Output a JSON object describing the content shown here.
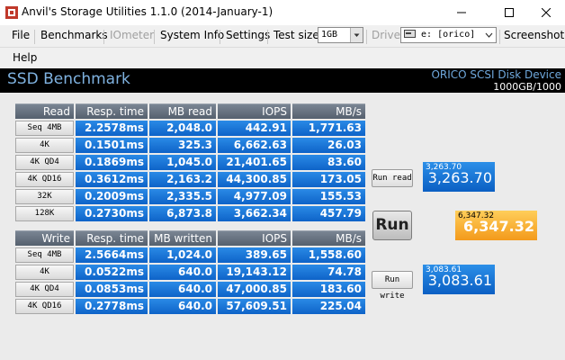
{
  "window": {
    "title": "Anvil's Storage Utilities 1.1.0 (2014-January-1)"
  },
  "menu": {
    "file": "File",
    "benchmarks": "Benchmarks",
    "iometer": "IOmeter",
    "system_info": "System Info",
    "settings": "Settings",
    "test_size_label": "Test size",
    "test_size_value": "1GB",
    "drive_label": "Drive",
    "drive_value": "e: [orico]",
    "screenshot": "Screenshot",
    "help": "Help"
  },
  "header": {
    "title": "SSD Benchmark",
    "disk_name": "ORICO  SCSI Disk Device",
    "disk_size": "1000GB/1000"
  },
  "read_table": {
    "headers": [
      "Read",
      "Resp. time",
      "MB read",
      "IOPS",
      "MB/s"
    ],
    "rows": [
      {
        "label": "Seq 4MB",
        "resp": "2.2578ms",
        "mb": "2,048.0",
        "iops": "442.91",
        "mbs": "1,771.63"
      },
      {
        "label": "4K",
        "resp": "0.1501ms",
        "mb": "325.3",
        "iops": "6,662.63",
        "mbs": "26.03"
      },
      {
        "label": "4K QD4",
        "resp": "0.1869ms",
        "mb": "1,045.0",
        "iops": "21,401.65",
        "mbs": "83.60"
      },
      {
        "label": "4K QD16",
        "resp": "0.3612ms",
        "mb": "2,163.2",
        "iops": "44,300.85",
        "mbs": "173.05"
      },
      {
        "label": "32K",
        "resp": "0.2009ms",
        "mb": "2,335.5",
        "iops": "4,977.09",
        "mbs": "155.53"
      },
      {
        "label": "128K",
        "resp": "0.2730ms",
        "mb": "6,873.8",
        "iops": "3,662.34",
        "mbs": "457.79"
      }
    ]
  },
  "write_table": {
    "headers": [
      "Write",
      "Resp. time",
      "MB written",
      "IOPS",
      "MB/s"
    ],
    "rows": [
      {
        "label": "Seq 4MB",
        "resp": "2.5664ms",
        "mb": "1,024.0",
        "iops": "389.65",
        "mbs": "1,558.60"
      },
      {
        "label": "4K",
        "resp": "0.0522ms",
        "mb": "640.0",
        "iops": "19,143.12",
        "mbs": "74.78"
      },
      {
        "label": "4K QD4",
        "resp": "0.0853ms",
        "mb": "640.0",
        "iops": "47,000.85",
        "mbs": "183.60"
      },
      {
        "label": "4K QD16",
        "resp": "0.2778ms",
        "mb": "640.0",
        "iops": "57,609.51",
        "mbs": "225.04"
      }
    ]
  },
  "controls": {
    "run_read": "Run read",
    "run": "Run",
    "run_write": "Run write"
  },
  "scores": {
    "read_small": "3,263.70",
    "read_big": "3,263.70",
    "total_small": "6,347.32",
    "total_big": "6,347.32",
    "write_small": "3,083.61",
    "write_big": "3,083.61"
  },
  "colors": {
    "value_cell": "#1a75d6",
    "header_cell": "#5f6a78",
    "score_blue": "#1a72d4",
    "score_orange": "#f7ae35",
    "header_band": "#000000"
  }
}
